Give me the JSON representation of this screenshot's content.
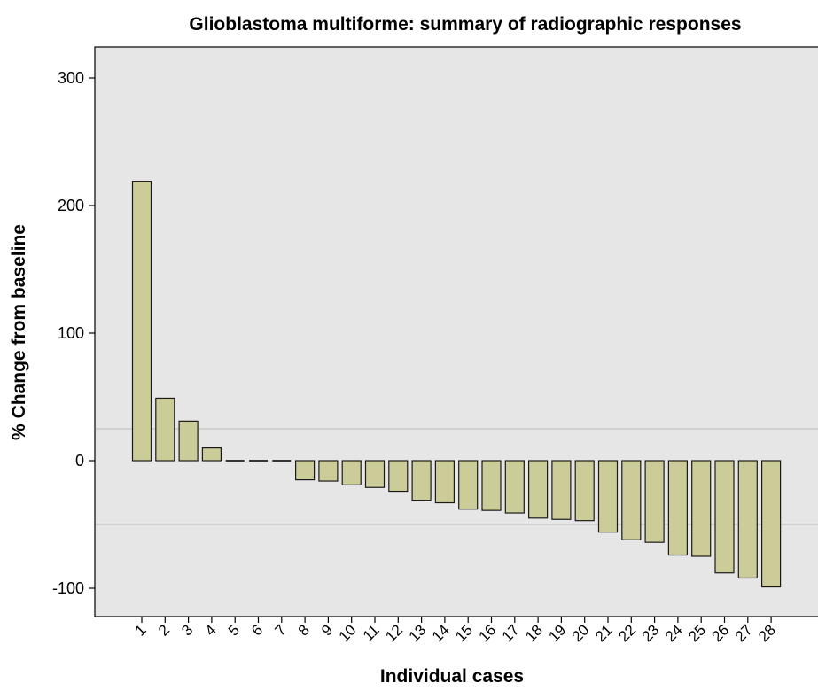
{
  "chart_data": {
    "type": "bar",
    "title": "Glioblastoma multiforme: summary of radiographic responses",
    "xlabel": "Individual cases",
    "ylabel": "% Change from baseline",
    "ylim": [
      -120,
      320
    ],
    "yticks": [
      -100,
      0,
      100,
      200,
      300
    ],
    "categories": [
      "1",
      "2",
      "3",
      "4",
      "5",
      "6",
      "7",
      "8",
      "9",
      "10",
      "11",
      "12",
      "13",
      "14",
      "15",
      "16",
      "17",
      "18",
      "19",
      "20",
      "21",
      "22",
      "23",
      "24",
      "25",
      "26",
      "27",
      "28"
    ],
    "values": [
      219,
      49,
      31,
      10,
      0,
      0,
      0,
      -15,
      -16,
      -19,
      -21,
      -24,
      -31,
      -33,
      -38,
      -39,
      -41,
      -45,
      -46,
      -47,
      -56,
      -62,
      -64,
      -74,
      -75,
      -88,
      -92,
      -99
    ],
    "reference_lines": [
      25,
      -50
    ],
    "grid": false,
    "legend": "none",
    "colors": {
      "bar_fill": "#cccc99",
      "bar_stroke": "#1a1a1a",
      "plot_background": "#e6e6e6",
      "reference_line": "#c8c8c8",
      "axis": "#000000"
    }
  }
}
